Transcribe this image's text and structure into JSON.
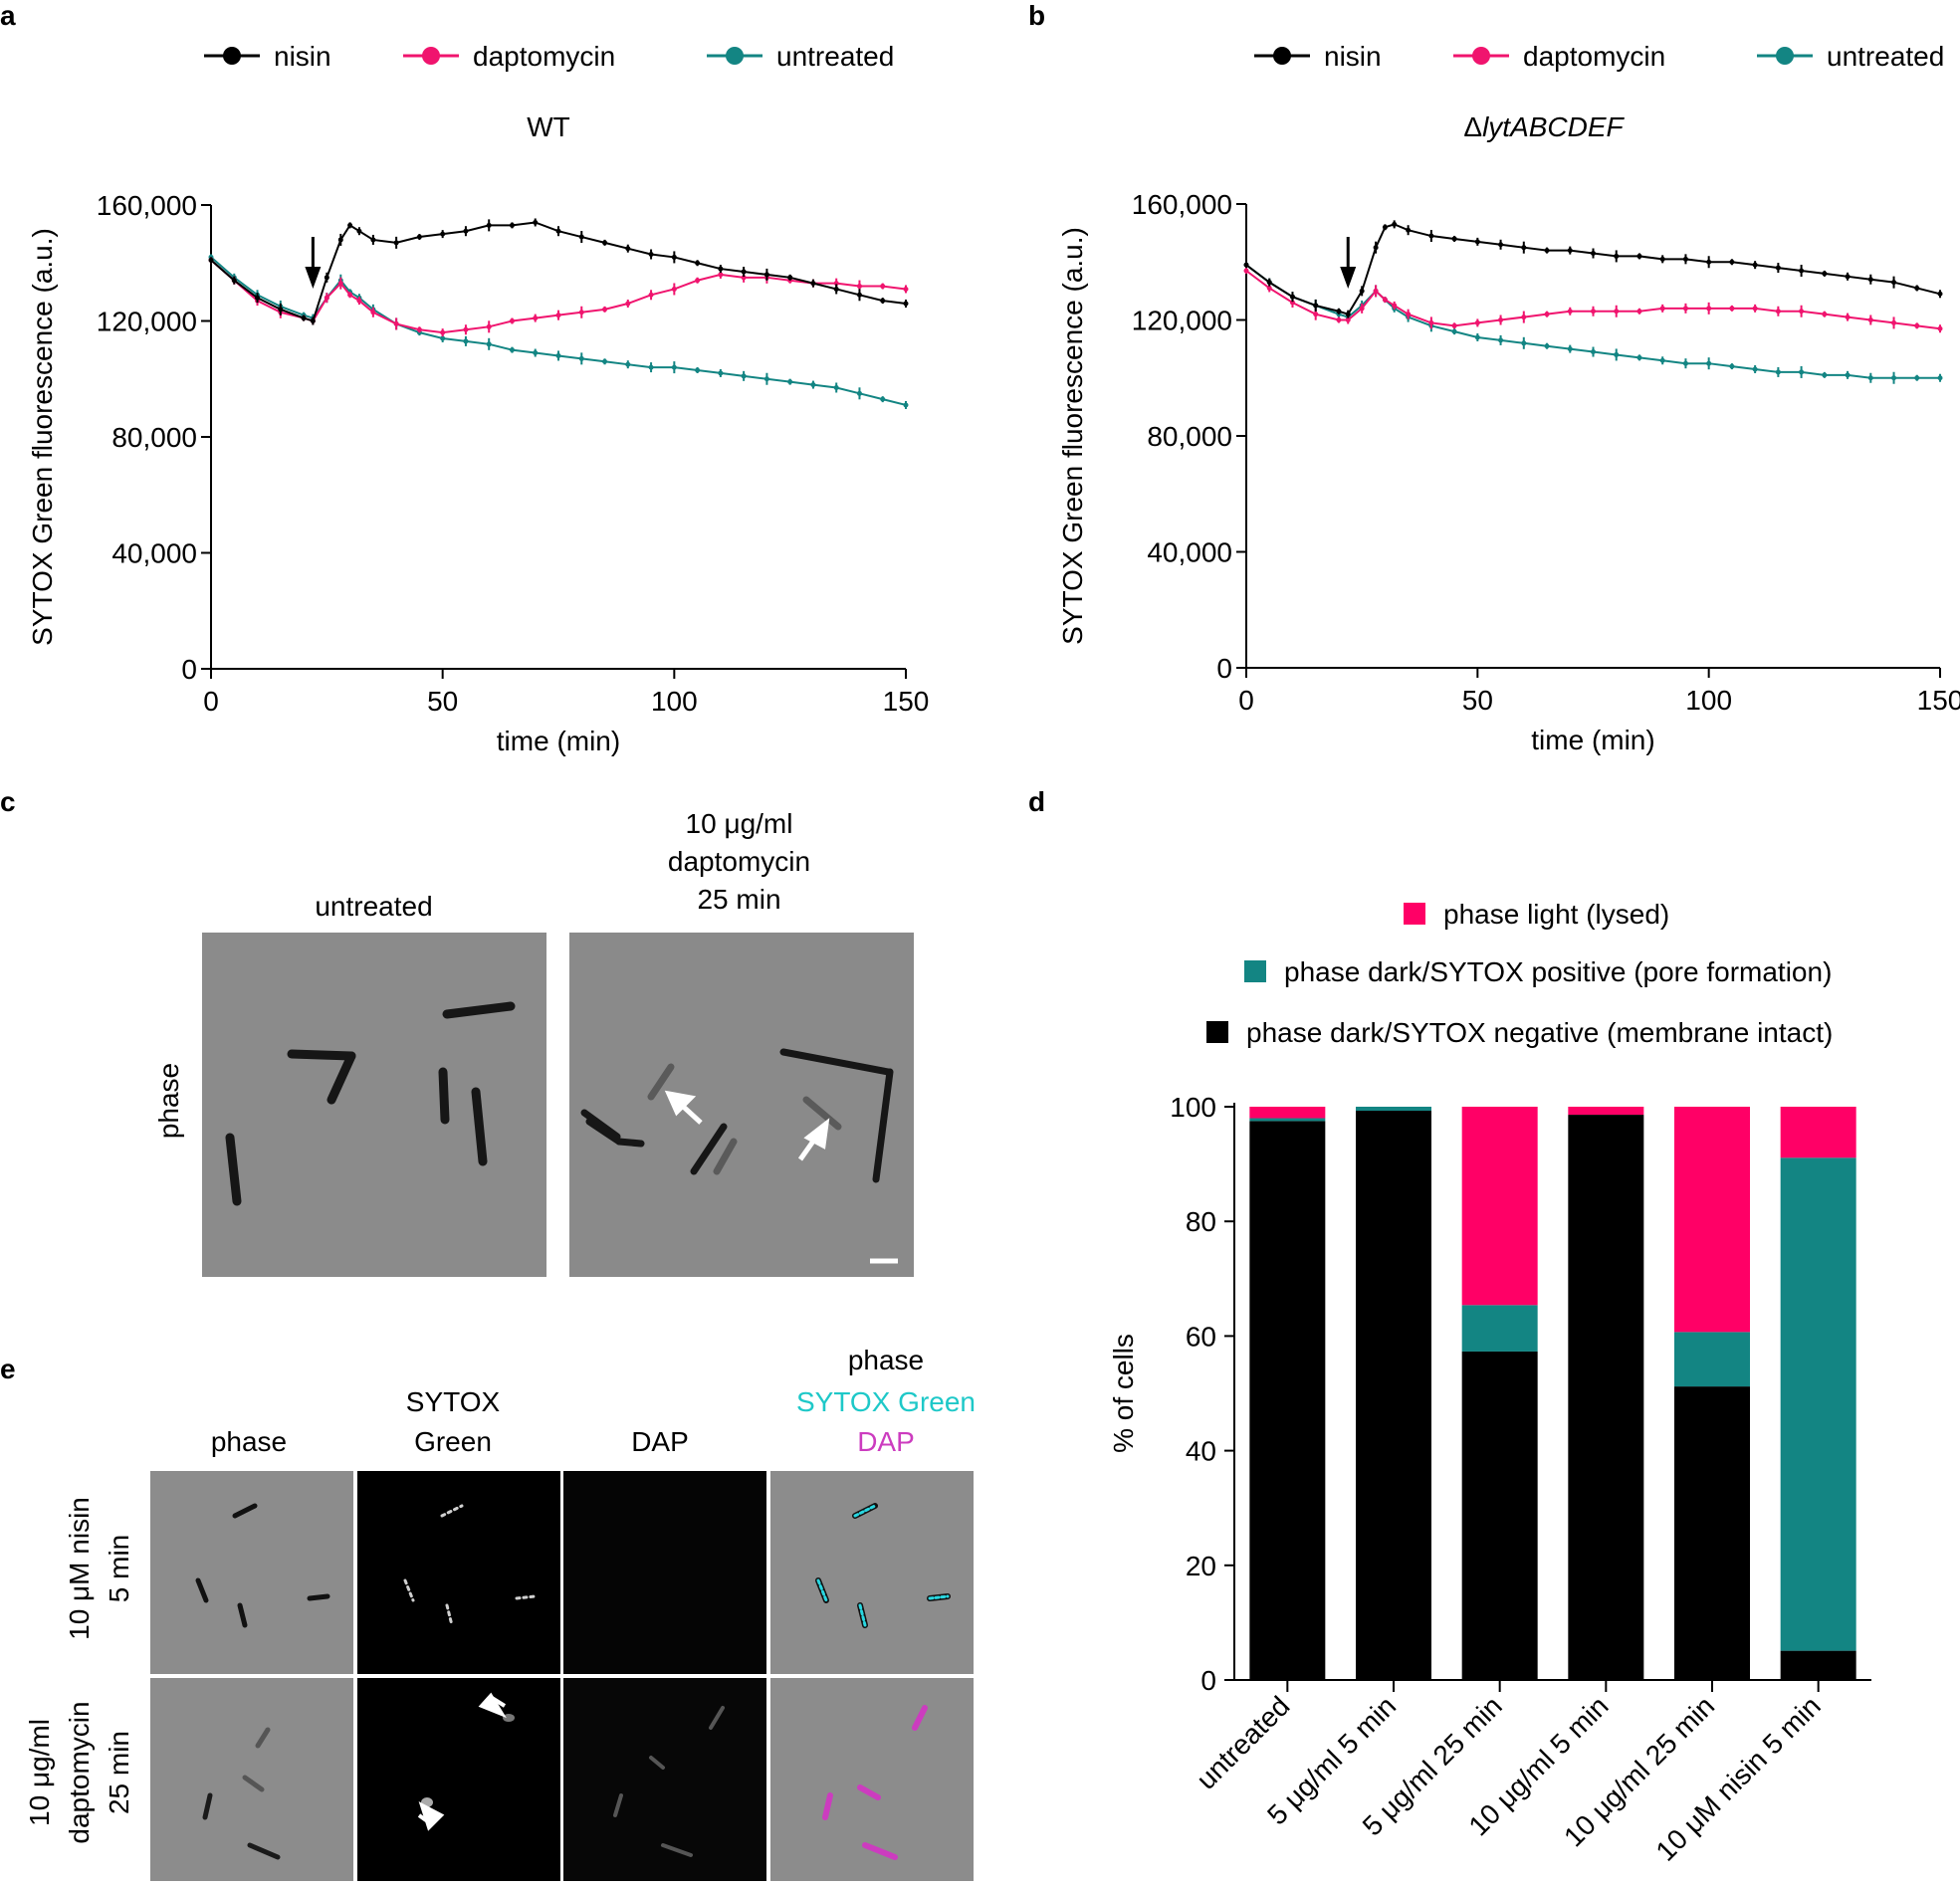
{
  "panels": {
    "a": "a",
    "b": "b",
    "c": "c",
    "d": "d",
    "e": "e"
  },
  "colors": {
    "nisin": "#000000",
    "daptomycin": "#f0146e",
    "untreated": "#138583",
    "pore": "#138583",
    "lysed": "#ff0066",
    "intact": "#000000"
  },
  "chart_data": [
    {
      "type": "line",
      "title": "WT",
      "xlabel": "time (min)",
      "ylabel": "SYTOX Green fluorescence (a.u.)",
      "xlim": [
        0,
        150
      ],
      "ylim": [
        0,
        160000
      ],
      "xticks": [
        "0",
        "50",
        "100",
        "150"
      ],
      "yticks": [
        "0",
        "40,000",
        "80,000",
        "120,000",
        "160,000"
      ],
      "legend": [
        "nisin",
        "daptomycin",
        "untreated"
      ],
      "annotation": "arrow at ~22 min (treatment addition)",
      "x": [
        0,
        5,
        10,
        15,
        20,
        22,
        25,
        28,
        30,
        32,
        35,
        40,
        45,
        50,
        55,
        60,
        65,
        70,
        75,
        80,
        85,
        90,
        95,
        100,
        105,
        110,
        115,
        120,
        125,
        130,
        135,
        140,
        145,
        150
      ],
      "series": [
        {
          "name": "nisin",
          "values": [
            141000,
            134000,
            128000,
            124000,
            121000,
            120000,
            135000,
            148000,
            153000,
            151000,
            148000,
            147000,
            149000,
            150000,
            151000,
            153000,
            153000,
            154000,
            151000,
            149000,
            147000,
            145000,
            143000,
            142000,
            140000,
            138000,
            137000,
            136000,
            135000,
            133000,
            131000,
            129000,
            127000,
            126000
          ]
        },
        {
          "name": "daptomycin",
          "values": [
            141000,
            134000,
            127000,
            123000,
            121000,
            120000,
            128000,
            133000,
            129000,
            127000,
            123000,
            119000,
            117000,
            116000,
            117000,
            118000,
            120000,
            121000,
            122000,
            123000,
            124000,
            126000,
            129000,
            131000,
            134000,
            136000,
            135000,
            135000,
            134000,
            133000,
            133000,
            132000,
            132000,
            131000
          ]
        },
        {
          "name": "untreated",
          "values": [
            142000,
            135000,
            129000,
            125000,
            122000,
            121000,
            128000,
            134000,
            130000,
            128000,
            124000,
            119000,
            116000,
            114000,
            113000,
            112000,
            110000,
            109000,
            108000,
            107000,
            106000,
            105000,
            104000,
            104000,
            103000,
            102000,
            101000,
            100000,
            99000,
            98000,
            97000,
            95000,
            93000,
            91000
          ]
        }
      ]
    },
    {
      "type": "line",
      "title": "ΔlytABCDEF",
      "xlabel": "time (min)",
      "ylabel": "SYTOX Green fluorescence (a.u.)",
      "xlim": [
        0,
        150
      ],
      "ylim": [
        0,
        160000
      ],
      "xticks": [
        "0",
        "50",
        "100",
        "150"
      ],
      "yticks": [
        "0",
        "40,000",
        "80,000",
        "120,000",
        "160,000"
      ],
      "legend": [
        "nisin",
        "daptomycin",
        "untreated"
      ],
      "annotation": "arrow at ~22 min (treatment addition)",
      "x": [
        0,
        5,
        10,
        15,
        20,
        22,
        25,
        28,
        30,
        32,
        35,
        40,
        45,
        50,
        55,
        60,
        65,
        70,
        75,
        80,
        85,
        90,
        95,
        100,
        105,
        110,
        115,
        120,
        125,
        130,
        135,
        140,
        145,
        150
      ],
      "series": [
        {
          "name": "nisin",
          "values": [
            139000,
            133000,
            128000,
            125000,
            123000,
            122000,
            130000,
            145000,
            152000,
            153000,
            151000,
            149000,
            148000,
            147000,
            146000,
            145000,
            144000,
            144000,
            143000,
            142000,
            142000,
            141000,
            141000,
            140000,
            140000,
            139000,
            138000,
            137000,
            136000,
            135000,
            134000,
            133000,
            131000,
            129000
          ]
        },
        {
          "name": "daptomycin",
          "values": [
            137000,
            131000,
            126000,
            122000,
            120000,
            120000,
            124000,
            130000,
            127000,
            125000,
            122000,
            119000,
            118000,
            119000,
            120000,
            121000,
            122000,
            123000,
            123000,
            123000,
            123000,
            124000,
            124000,
            124000,
            124000,
            124000,
            123000,
            123000,
            122000,
            121000,
            120000,
            119000,
            118000,
            117000
          ]
        },
        {
          "name": "untreated",
          "values": [
            139000,
            133000,
            128000,
            125000,
            122000,
            121000,
            125000,
            130000,
            127000,
            124000,
            121000,
            118000,
            116000,
            114000,
            113000,
            112000,
            111000,
            110000,
            109000,
            108000,
            107000,
            106000,
            105000,
            105000,
            104000,
            103000,
            102000,
            102000,
            101000,
            101000,
            100000,
            100000,
            100000,
            100000
          ]
        }
      ]
    },
    {
      "type": "bar",
      "stacked": true,
      "ylabel": "% of cells",
      "ylim": [
        0,
        100
      ],
      "yticks": [
        "0",
        "20",
        "40",
        "60",
        "80",
        "100"
      ],
      "categories": [
        "untreated",
        "5 μg/ml 5 min",
        "5 μg/ml 25 min",
        "10 μg/ml 5 min",
        "10 μg/ml 25 min",
        "10 μM nisin 5 min"
      ],
      "legend": [
        "phase light (lysed)",
        "phase dark/SYTOX positive (pore formation)",
        "phase dark/SYTOX negative (membrane intact)"
      ],
      "series": [
        {
          "name": "phase dark/SYTOX negative (membrane intact)",
          "values": [
            97.5,
            99.3,
            57.3,
            98.6,
            51.2,
            5.1
          ]
        },
        {
          "name": "phase dark/SYTOX positive (pore formation)",
          "values": [
            0.5,
            0.7,
            8.1,
            0,
            9.5,
            86.0
          ]
        },
        {
          "name": "phase light (lysed)",
          "values": [
            2.0,
            0,
            34.6,
            1.4,
            39.3,
            8.9
          ]
        }
      ]
    }
  ],
  "panel_c": {
    "col_untreated": "untreated",
    "col_dapto": [
      "10 μg/ml",
      "daptomycin",
      "25 min"
    ],
    "row_label": "phase"
  },
  "panel_e": {
    "columns": {
      "phase": "phase",
      "sytox": [
        "SYTOX",
        "Green"
      ],
      "dap": "DAP",
      "merge": [
        "phase",
        "SYTOX Green",
        "DAP"
      ]
    },
    "rows": [
      [
        "10 μM nisin",
        "5 min"
      ],
      [
        "10 μg/ml",
        "daptomycin",
        "25 min"
      ]
    ]
  }
}
